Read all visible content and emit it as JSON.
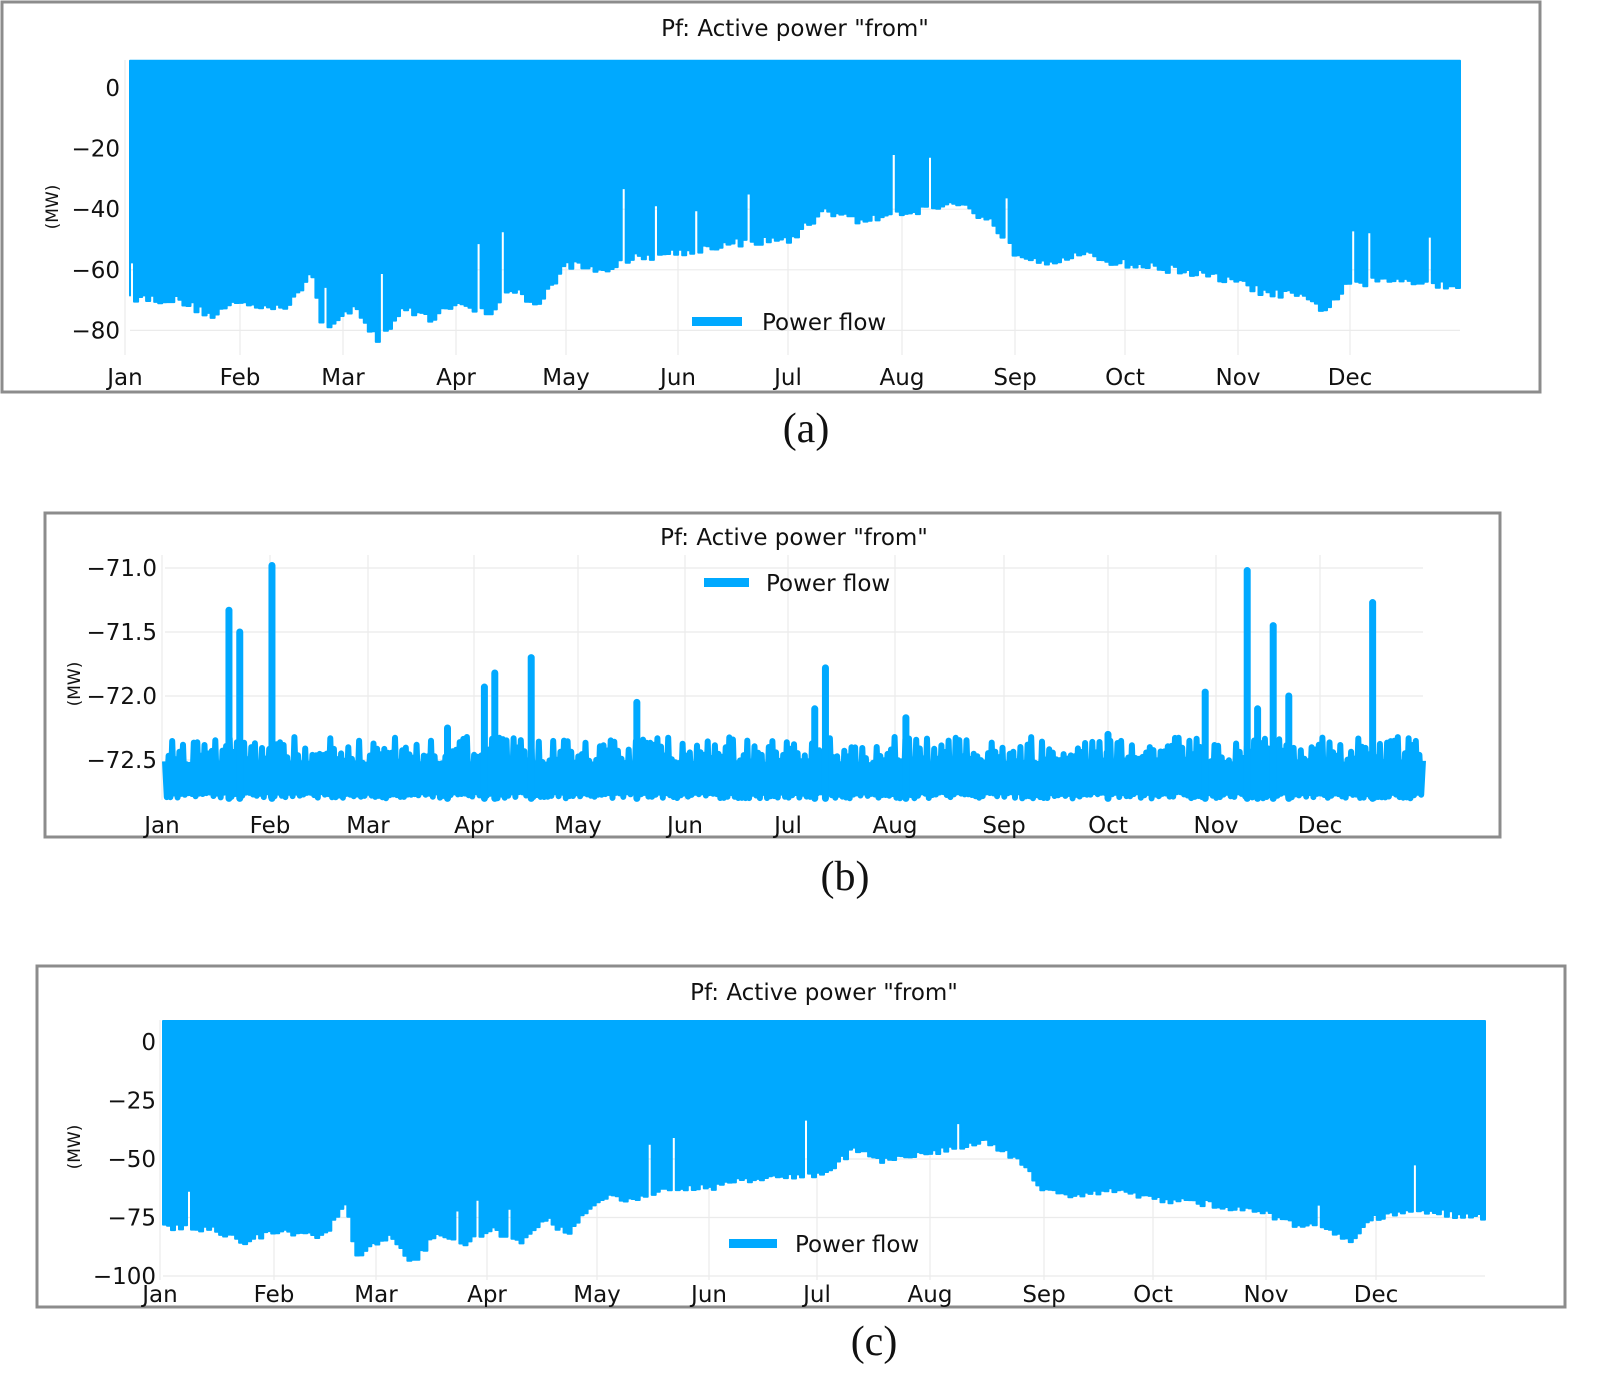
{
  "series_color": "#00A9FF",
  "chart_data": [
    {
      "id": "a",
      "type": "area",
      "title": "Pf: Active power \"from\"",
      "ylabel": "(MW)",
      "legend": "Power flow",
      "legend_position": "bottom-center",
      "caption": "(a)",
      "months": [
        "Jan",
        "Feb",
        "Mar",
        "Apr",
        "May",
        "Jun",
        "Jul",
        "Aug",
        "Sep",
        "Oct",
        "Nov",
        "Dec"
      ],
      "yticks": [
        0,
        -20,
        -40,
        -60,
        -80
      ],
      "ytick_labels": [
        "0",
        "−20",
        "−40",
        "−60",
        "−80"
      ],
      "ylim": [
        -88,
        9
      ],
      "upper_value": 9,
      "grid": true,
      "lower_envelope_monthly": {
        "x_month_fraction": [
          0.0,
          0.05,
          0.5,
          0.8,
          1.0,
          1.5,
          1.7,
          1.8,
          2.1,
          2.3,
          2.5,
          2.8,
          3.0,
          3.3,
          3.5,
          3.7,
          4.0,
          4.3,
          4.6,
          5.0,
          5.2,
          5.5,
          6.0,
          6.3,
          6.6,
          7.0,
          7.5,
          7.8,
          8.0,
          8.3,
          8.6,
          9.0,
          9.5,
          10.0,
          10.3,
          10.5,
          10.8,
          11.0,
          11.5,
          11.9
        ],
        "y": [
          -52,
          -69,
          -70,
          -75,
          -71,
          -72,
          -60,
          -81,
          -72,
          -84,
          -73,
          -76,
          -70,
          -75,
          -66,
          -72,
          -58,
          -60,
          -56,
          -54,
          -53,
          -51,
          -50,
          -40,
          -44,
          -41,
          -38,
          -44,
          -54,
          -57,
          -55,
          -58,
          -60,
          -64,
          -68,
          -68,
          -73,
          -65,
          -63,
          -65
        ]
      }
    },
    {
      "id": "b",
      "type": "line",
      "title": "Pf: Active power \"from\"",
      "ylabel": "(MW)",
      "legend": "Power flow",
      "legend_position": "top-center",
      "caption": "(b)",
      "months": [
        "Jan",
        "Feb",
        "Mar",
        "Apr",
        "May",
        "Jun",
        "Jul",
        "Aug",
        "Sep",
        "Oct",
        "Nov",
        "Dec"
      ],
      "yticks": [
        -71.0,
        -71.5,
        -72.0,
        -72.5
      ],
      "ytick_labels": [
        "−71.0",
        "−71.5",
        "−72.0",
        "−72.5"
      ],
      "ylim": [
        -72.8,
        -70.9
      ],
      "baseline": -72.8,
      "typical_level": -72.55,
      "grid": true,
      "spikes": {
        "x_month_fraction": [
          0.62,
          0.72,
          1.02,
          2.75,
          3.1,
          3.2,
          3.55,
          4.55,
          6.35,
          6.25,
          7.1,
          9.0,
          9.9,
          10.3,
          10.4,
          10.55,
          10.7,
          11.5
        ],
        "y": [
          -71.33,
          -71.5,
          -70.98,
          -72.25,
          -71.93,
          -71.82,
          -71.7,
          -72.05,
          -71.78,
          -72.1,
          -72.17,
          -72.3,
          -71.97,
          -71.02,
          -72.1,
          -71.45,
          -72.0,
          -71.27
        ]
      }
    },
    {
      "id": "c",
      "type": "area",
      "title": "Pf: Active power \"from\"",
      "ylabel": "(MW)",
      "legend": "Power flow",
      "legend_position": "bottom-center",
      "caption": "(c)",
      "months": [
        "Jan",
        "Feb",
        "Mar",
        "Apr",
        "May",
        "Jun",
        "Jul",
        "Aug",
        "Sep",
        "Oct",
        "Nov",
        "Dec"
      ],
      "yticks": [
        0,
        -25,
        -50,
        -75,
        -100
      ],
      "ytick_labels": [
        "0",
        "−25",
        "−50",
        "−75",
        "−100"
      ],
      "ylim": [
        -100,
        9
      ],
      "upper_value": 9,
      "grid": true,
      "lower_envelope_monthly": {
        "x_month_fraction": [
          0.0,
          0.05,
          0.5,
          0.8,
          1.0,
          1.5,
          1.7,
          1.8,
          2.1,
          2.3,
          2.5,
          2.8,
          3.0,
          3.3,
          3.5,
          3.7,
          4.0,
          4.3,
          4.6,
          5.0,
          5.2,
          5.5,
          6.0,
          6.3,
          6.6,
          7.0,
          7.5,
          7.8,
          8.0,
          8.3,
          8.6,
          9.0,
          9.5,
          10.0,
          10.3,
          10.5,
          10.8,
          11.0,
          11.5,
          11.9
        ],
        "y": [
          -60,
          -79,
          -80,
          -86,
          -81,
          -83,
          -69,
          -92,
          -82,
          -95,
          -83,
          -86,
          -80,
          -86,
          -75,
          -82,
          -66,
          -68,
          -63,
          -62,
          -60,
          -58,
          -57,
          -46,
          -51,
          -47,
          -43,
          -51,
          -62,
          -66,
          -63,
          -67,
          -69,
          -73,
          -78,
          -79,
          -85,
          -75,
          -72,
          -75
        ]
      }
    }
  ]
}
